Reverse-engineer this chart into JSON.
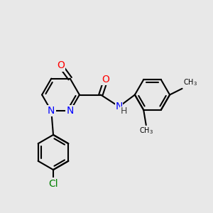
{
  "bg_color": "#e8e8e8",
  "bond_color": "#000000",
  "bond_width": 1.5,
  "atom_colors": {
    "O": "#ff0000",
    "N": "#0000ff",
    "Cl": "#008000",
    "C": "#000000"
  },
  "font_size_atom": 10,
  "font_size_methyl": 7
}
